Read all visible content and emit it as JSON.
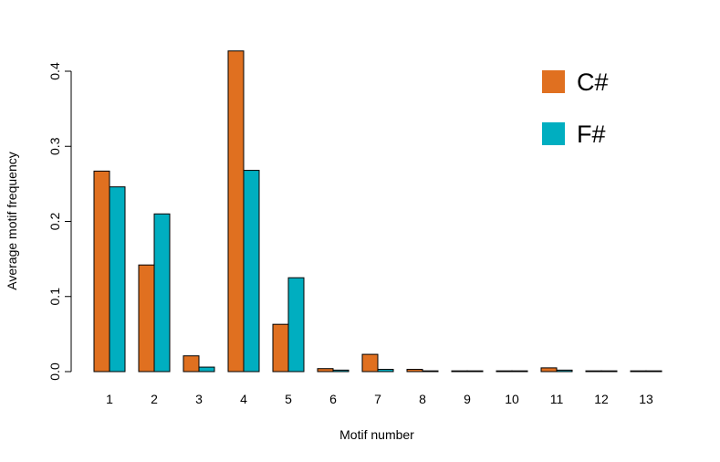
{
  "chart_data": {
    "type": "bar",
    "title": "",
    "xlabel": "Motif number",
    "ylabel": "Average motif frequency",
    "ylim": [
      0,
      0.43
    ],
    "yticks": [
      "0.0",
      "0.1",
      "0.2",
      "0.3",
      "0.4"
    ],
    "categories": [
      "1",
      "2",
      "3",
      "4",
      "5",
      "6",
      "7",
      "8",
      "9",
      "10",
      "11",
      "12",
      "13"
    ],
    "grid": false,
    "legend_position": "top-right",
    "series": [
      {
        "name": "C#",
        "color": "#e07020",
        "values": [
          0.267,
          0.142,
          0.021,
          0.427,
          0.063,
          0.004,
          0.023,
          0.003,
          0.001,
          0.001,
          0.005,
          0.001,
          0.001
        ]
      },
      {
        "name": "F#",
        "color": "#00aec0",
        "values": [
          0.246,
          0.21,
          0.006,
          0.268,
          0.125,
          0.002,
          0.003,
          0.001,
          0.001,
          0.001,
          0.002,
          0.001,
          0.001
        ]
      }
    ]
  }
}
